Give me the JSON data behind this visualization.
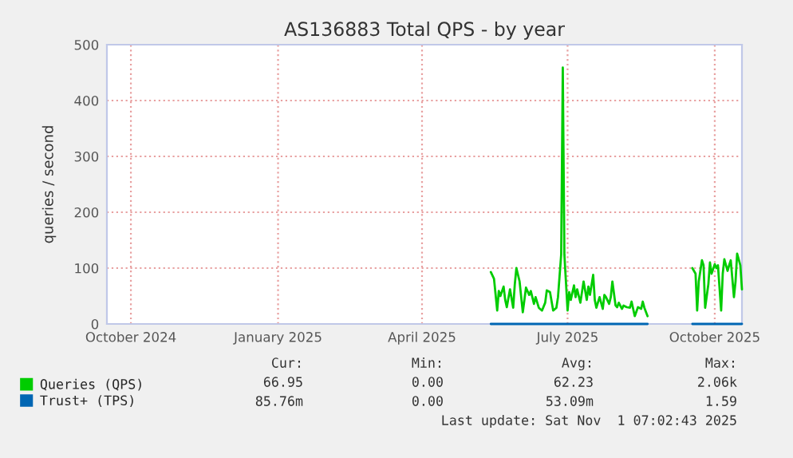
{
  "chart_data": {
    "type": "line",
    "title": "AS136883 Total QPS - by year",
    "ylabel": "queries / second",
    "xlim": [
      "2024-09-30",
      "2025-11-01"
    ],
    "ylim": [
      0,
      500
    ],
    "yticks": [
      0,
      100,
      200,
      300,
      400,
      500
    ],
    "xticks": [
      {
        "value": "2024-10-15",
        "label": "October 2024"
      },
      {
        "value": "2025-01-15",
        "label": "January 2025"
      },
      {
        "value": "2025-04-15",
        "label": "April 2025"
      },
      {
        "value": "2025-07-15",
        "label": "July 2025"
      },
      {
        "value": "2025-10-15",
        "label": "October 2025"
      }
    ],
    "grid": true,
    "legend": "bottom left",
    "series": [
      {
        "name": "Queries (QPS)",
        "color": "#00cc00",
        "x": [
          "2025-05-28",
          "2025-05-30",
          "2025-06-01",
          "2025-06-02",
          "2025-06-03",
          "2025-06-05",
          "2025-06-06",
          "2025-06-07",
          "2025-06-09",
          "2025-06-11",
          "2025-06-12",
          "2025-06-13",
          "2025-06-15",
          "2025-06-16",
          "2025-06-17",
          "2025-06-19",
          "2025-06-21",
          "2025-06-22",
          "2025-06-24",
          "2025-06-25",
          "2025-06-27",
          "2025-06-29",
          "2025-07-01",
          "2025-07-02",
          "2025-07-04",
          "2025-07-06",
          "2025-07-08",
          "2025-07-09",
          "2025-07-11",
          "2025-07-12",
          "2025-07-13",
          "2025-07-15",
          "2025-07-16",
          "2025-07-17",
          "2025-07-19",
          "2025-07-20",
          "2025-07-21",
          "2025-07-23",
          "2025-07-24",
          "2025-07-25",
          "2025-07-27",
          "2025-07-28",
          "2025-07-29",
          "2025-07-31",
          "2025-08-01",
          "2025-08-02",
          "2025-08-04",
          "2025-08-06",
          "2025-08-07",
          "2025-08-08",
          "2025-08-10",
          "2025-08-11",
          "2025-08-12",
          "2025-08-14",
          "2025-08-15",
          "2025-08-16",
          "2025-08-18",
          "2025-08-19",
          "2025-08-21",
          "2025-08-23",
          "2025-08-24",
          "2025-08-26",
          "2025-08-28",
          "2025-08-30",
          "2025-08-31",
          "2025-09-01",
          "2025-09-03",
          "2025-09-17",
          "2025-10-01",
          "2025-10-03",
          "2025-10-04",
          "2025-10-05",
          "2025-10-07",
          "2025-10-08",
          "2025-10-09",
          "2025-10-11",
          "2025-10-12",
          "2025-10-13",
          "2025-10-15",
          "2025-10-16",
          "2025-10-17",
          "2025-10-19",
          "2025-10-20",
          "2025-10-21",
          "2025-10-23",
          "2025-10-24",
          "2025-10-25",
          "2025-10-27",
          "2025-10-28",
          "2025-10-29",
          "2025-10-31",
          "2025-11-01"
        ],
        "values": [
          93,
          81,
          24,
          59,
          50,
          67,
          43,
          30,
          62,
          29,
          71,
          100,
          76,
          48,
          21,
          65,
          52,
          59,
          36,
          48,
          29,
          24,
          38,
          60,
          57,
          24,
          29,
          48,
          124,
          459,
          124,
          24,
          57,
          43,
          69,
          48,
          62,
          38,
          57,
          76,
          43,
          67,
          52,
          88,
          43,
          29,
          48,
          27,
          52,
          48,
          36,
          48,
          76,
          33,
          30,
          38,
          27,
          33,
          30,
          29,
          40,
          14,
          30,
          27,
          40,
          29,
          14,
          null,
          100,
          90,
          24,
          76,
          114,
          105,
          29,
          71,
          110,
          90,
          107,
          100,
          105,
          24,
          90,
          116,
          95,
          105,
          114,
          48,
          76,
          126,
          105,
          62
        ]
      },
      {
        "name": "Trust+ (TPS)",
        "color": "#0066b3",
        "x": [
          "2025-05-28",
          "2025-09-03",
          "2025-09-17",
          "2025-10-01",
          "2025-11-01"
        ],
        "values": [
          0,
          0,
          null,
          0,
          0
        ]
      }
    ],
    "annotations": [
      "Cur:",
      "Min:",
      "Avg:",
      "Max:",
      "66.95",
      "0.00",
      "62.23",
      "2.06k",
      "85.76m",
      "0.00",
      "53.09m",
      "1.59",
      "Last update: Sat Nov  1 07:02:43 2025"
    ]
  }
}
